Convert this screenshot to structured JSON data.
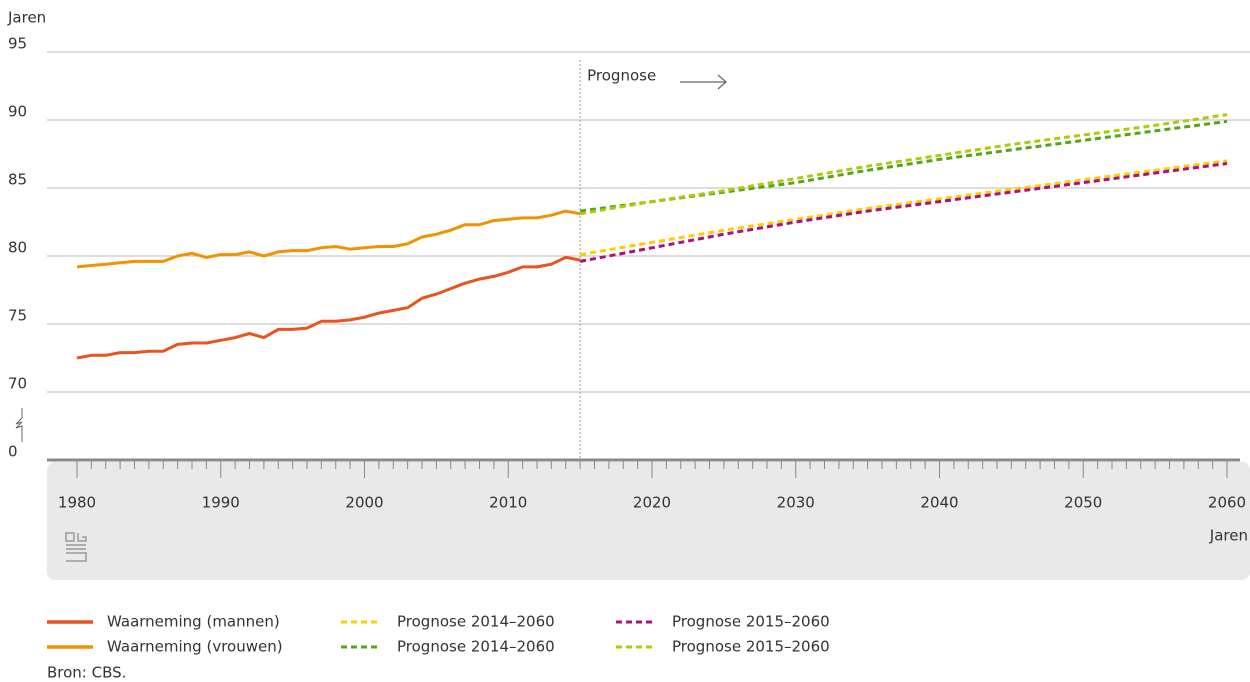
{
  "chart_data": {
    "type": "line",
    "y_label": "Jaren",
    "x_label": "Jaren",
    "source": "Bron: CBS.",
    "annotation": {
      "text": "Prognose",
      "x": 2015
    },
    "xlim": [
      1980,
      2060
    ],
    "xticks": [
      1980,
      1990,
      2000,
      2010,
      2020,
      2030,
      2040,
      2050,
      2060
    ],
    "minor_xtick_step": 1,
    "ylim": [
      0,
      95
    ],
    "yticks": [
      0,
      70,
      75,
      80,
      85,
      90,
      95
    ],
    "y_break": {
      "from": 0,
      "to": 70
    },
    "grid": true,
    "series": [
      {
        "name": "Waarneming (mannen)",
        "color": "#e8541c",
        "dashed": false,
        "x": [
          1980,
          1981,
          1982,
          1983,
          1984,
          1985,
          1986,
          1987,
          1988,
          1989,
          1990,
          1991,
          1992,
          1993,
          1994,
          1995,
          1996,
          1997,
          1998,
          1999,
          2000,
          2001,
          2002,
          2003,
          2004,
          2005,
          2006,
          2007,
          2008,
          2009,
          2010,
          2011,
          2012,
          2013,
          2014,
          2015
        ],
        "values": [
          72.5,
          72.7,
          72.7,
          72.9,
          72.9,
          73.0,
          73.0,
          73.5,
          73.6,
          73.6,
          73.8,
          74.0,
          74.3,
          74.0,
          74.6,
          74.6,
          74.7,
          75.2,
          75.2,
          75.3,
          75.5,
          75.8,
          76.0,
          76.2,
          76.9,
          77.2,
          77.6,
          78.0,
          78.3,
          78.5,
          78.8,
          79.2,
          79.2,
          79.4,
          79.9,
          79.7
        ]
      },
      {
        "name": "Waarneming (vrouwen)",
        "color": "#f39200",
        "dashed": false,
        "x": [
          1980,
          1981,
          1982,
          1983,
          1984,
          1985,
          1986,
          1987,
          1988,
          1989,
          1990,
          1991,
          1992,
          1993,
          1994,
          1995,
          1996,
          1997,
          1998,
          1999,
          2000,
          2001,
          2002,
          2003,
          2004,
          2005,
          2006,
          2007,
          2008,
          2009,
          2010,
          2011,
          2012,
          2013,
          2014,
          2015
        ],
        "values": [
          79.2,
          79.3,
          79.4,
          79.5,
          79.6,
          79.6,
          79.6,
          80.0,
          80.2,
          79.9,
          80.1,
          80.1,
          80.3,
          80.0,
          80.3,
          80.4,
          80.4,
          80.6,
          80.7,
          80.5,
          80.6,
          80.7,
          80.7,
          80.9,
          81.4,
          81.6,
          81.9,
          82.3,
          82.3,
          82.6,
          82.7,
          82.8,
          82.8,
          83.0,
          83.3,
          83.1
        ]
      },
      {
        "name": "Prognose 2014–2060",
        "color": "#ffcc00",
        "dashed": true,
        "x": [
          2015,
          2020,
          2025,
          2030,
          2035,
          2040,
          2045,
          2050,
          2055,
          2060
        ],
        "values": [
          80.1,
          81.0,
          81.9,
          82.7,
          83.5,
          84.2,
          84.9,
          85.6,
          86.3,
          87.0
        ]
      },
      {
        "name": "Prognose 2014–2060",
        "color": "#53a31d",
        "dashed": true,
        "x": [
          2015,
          2020,
          2025,
          2030,
          2035,
          2040,
          2045,
          2050,
          2055,
          2060
        ],
        "values": [
          83.3,
          84.0,
          84.7,
          85.4,
          86.3,
          87.1,
          87.8,
          88.5,
          89.2,
          89.9
        ]
      },
      {
        "name": "Prognose 2015–2060",
        "color": "#af0e80",
        "dashed": true,
        "x": [
          2015,
          2020,
          2025,
          2030,
          2035,
          2040,
          2045,
          2050,
          2055,
          2060
        ],
        "values": [
          79.6,
          80.6,
          81.6,
          82.5,
          83.3,
          84.0,
          84.7,
          85.4,
          86.1,
          86.8
        ]
      },
      {
        "name": "Prognose 2015–2060",
        "color": "#afcb05",
        "dashed": true,
        "x": [
          2015,
          2020,
          2025,
          2030,
          2035,
          2040,
          2045,
          2050,
          2055,
          2060
        ],
        "values": [
          83.1,
          84.0,
          84.8,
          85.7,
          86.6,
          87.4,
          88.2,
          88.9,
          89.6,
          90.4
        ]
      }
    ]
  }
}
